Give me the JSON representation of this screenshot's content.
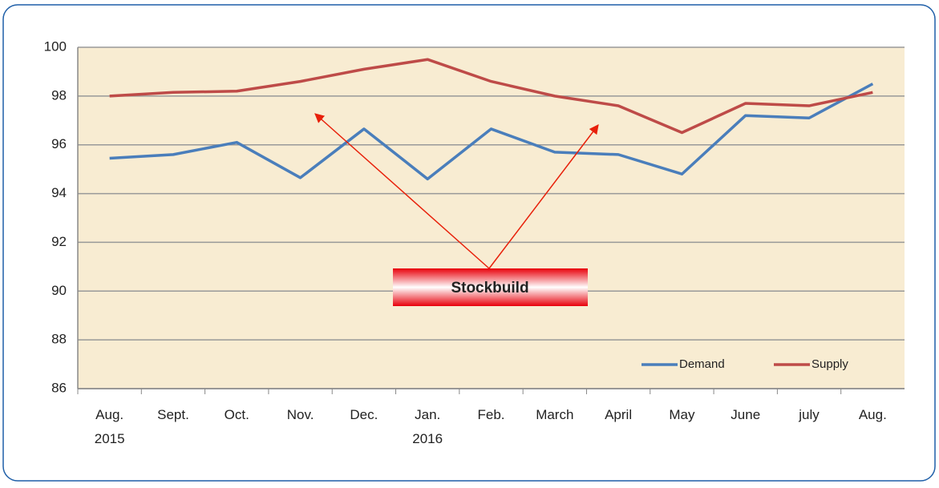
{
  "chart_data": {
    "type": "line",
    "categories": [
      "Aug. 2015",
      "Sept.",
      "Oct.",
      "Nov.",
      "Dec.",
      "Jan. 2016",
      "Feb.",
      "March",
      "April",
      "May",
      "June",
      "july",
      "Aug."
    ],
    "series": [
      {
        "name": "Demand",
        "color": "#4a7ebb",
        "values": [
          95.45,
          95.6,
          96.1,
          94.65,
          96.65,
          94.6,
          96.65,
          95.7,
          95.6,
          94.8,
          97.2,
          97.1,
          98.5
        ]
      },
      {
        "name": "Supply",
        "color": "#be4b48",
        "values": [
          98.0,
          98.15,
          98.2,
          98.6,
          99.1,
          99.5,
          98.6,
          98.0,
          97.6,
          96.5,
          97.7,
          97.6,
          98.15
        ]
      }
    ],
    "ylim": [
      86,
      100
    ],
    "yticks": [
      86,
      88,
      90,
      92,
      94,
      96,
      98,
      100
    ],
    "grid": true,
    "legend": "lower right",
    "annotations": [
      "Stockbuild"
    ]
  }
}
